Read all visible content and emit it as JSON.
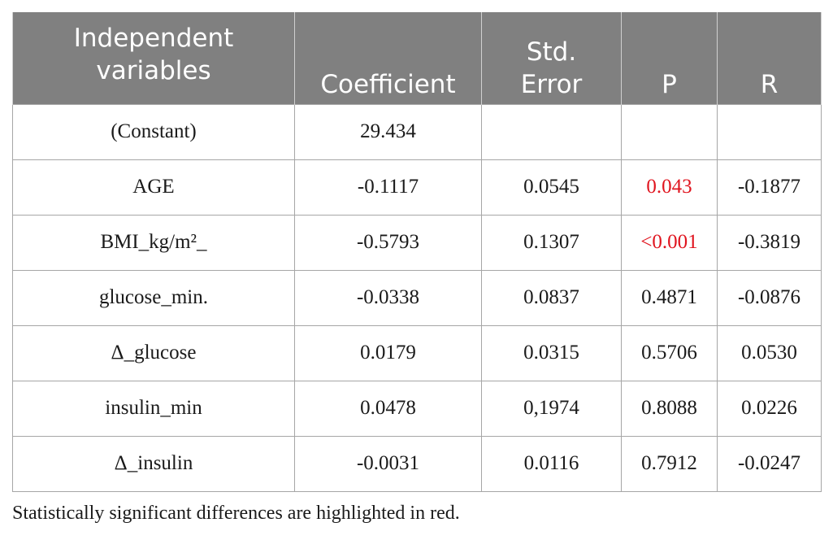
{
  "table": {
    "headers": [
      {
        "line1": "Independent",
        "line2": "variables"
      },
      {
        "line1": "",
        "line2": "Coefficient"
      },
      {
        "line1": "Std.",
        "line2": "Error"
      },
      {
        "line1": "",
        "line2": "P"
      },
      {
        "line1": "",
        "line2": "R"
      }
    ],
    "rows": [
      {
        "variable": "(Constant)",
        "coefficient": "29.434",
        "std_error": "",
        "p": "",
        "r": ""
      },
      {
        "variable": "AGE",
        "coefficient": "-0.1117",
        "std_error": "0.0545",
        "p": "0.043",
        "r": "-0.1877"
      },
      {
        "variable": "BMI_kg/m²_",
        "coefficient": "-0.5793",
        "std_error": "0.1307",
        "p": "<0.001",
        "r": "-0.3819"
      },
      {
        "variable": "glucose_min.",
        "coefficient": "-0.0338",
        "std_error": "0.0837",
        "p": "0.4871",
        "r": "-0.0876"
      },
      {
        "variable": "Δ_glucose",
        "coefficient": "0.0179",
        "std_error": "0.0315",
        "p": "0.5706",
        "r": "0.0530"
      },
      {
        "variable": "insulin_min",
        "coefficient": "0.0478",
        "std_error": "0,1974",
        "p": "0.8088",
        "r": "0.0226"
      },
      {
        "variable": "Δ_insulin",
        "coefficient": "-0.0031",
        "std_error": "0.0116",
        "p": "0.7912",
        "r": "-0.0247"
      }
    ]
  },
  "footnote": "Statistically significant differences are highlighted in red.",
  "colors": {
    "header_bg": "#808080",
    "header_text": "#ffffff",
    "significant": "#e0141e",
    "border": "#a6a6a6"
  }
}
